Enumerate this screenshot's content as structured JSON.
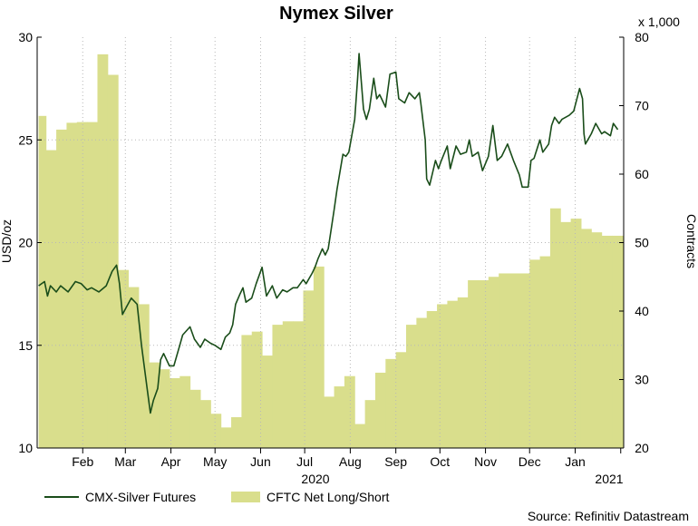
{
  "chart_data": {
    "type": "line",
    "title": "Nymex Silver",
    "ylabel": "USD/oz",
    "y2label": "Contracts",
    "y2_multiplier": "x 1,000",
    "ylim": [
      10,
      30
    ],
    "y2lim": [
      20,
      80
    ],
    "yticks": [
      "10",
      "15",
      "20",
      "25",
      "30"
    ],
    "y2ticks": [
      "20",
      "30",
      "40",
      "50",
      "60",
      "70",
      "80"
    ],
    "x_month_labels": [
      "Feb",
      "Mar",
      "Apr",
      "May",
      "Jun",
      "Jul",
      "Aug",
      "Sep",
      "Oct",
      "Nov",
      "Dec",
      "Jan"
    ],
    "x_year_labels": [
      "2020",
      "2021"
    ],
    "grid": true,
    "legend_position": "bottom",
    "series": [
      {
        "name": "CMX-Silver Futures",
        "axis": "left",
        "type": "line",
        "color": "#1a4d1a",
        "points": [
          [
            "2020-01-02",
            17.9
          ],
          [
            "2020-01-06",
            18.1
          ],
          [
            "2020-01-08",
            17.4
          ],
          [
            "2020-01-10",
            17.9
          ],
          [
            "2020-01-14",
            17.6
          ],
          [
            "2020-01-17",
            17.9
          ],
          [
            "2020-01-22",
            17.6
          ],
          [
            "2020-01-27",
            18.1
          ],
          [
            "2020-01-31",
            18.0
          ],
          [
            "2020-02-04",
            17.7
          ],
          [
            "2020-02-07",
            17.8
          ],
          [
            "2020-02-12",
            17.6
          ],
          [
            "2020-02-17",
            17.9
          ],
          [
            "2020-02-21",
            18.6
          ],
          [
            "2020-02-24",
            18.9
          ],
          [
            "2020-02-26",
            18.0
          ],
          [
            "2020-02-28",
            16.5
          ],
          [
            "2020-03-02",
            16.9
          ],
          [
            "2020-03-05",
            17.3
          ],
          [
            "2020-03-09",
            17.0
          ],
          [
            "2020-03-12",
            15.0
          ],
          [
            "2020-03-16",
            12.8
          ],
          [
            "2020-03-18",
            11.7
          ],
          [
            "2020-03-20",
            12.3
          ],
          [
            "2020-03-23",
            12.9
          ],
          [
            "2020-03-25",
            14.3
          ],
          [
            "2020-03-27",
            14.6
          ],
          [
            "2020-03-31",
            14.0
          ],
          [
            "2020-04-03",
            14.0
          ],
          [
            "2020-04-07",
            15.0
          ],
          [
            "2020-04-09",
            15.5
          ],
          [
            "2020-04-14",
            15.9
          ],
          [
            "2020-04-17",
            15.3
          ],
          [
            "2020-04-21",
            14.9
          ],
          [
            "2020-04-24",
            15.3
          ],
          [
            "2020-04-28",
            15.1
          ],
          [
            "2020-05-01",
            15.0
          ],
          [
            "2020-05-05",
            14.8
          ],
          [
            "2020-05-08",
            15.4
          ],
          [
            "2020-05-11",
            15.6
          ],
          [
            "2020-05-13",
            16.0
          ],
          [
            "2020-05-15",
            17.0
          ],
          [
            "2020-05-18",
            17.5
          ],
          [
            "2020-05-20",
            17.8
          ],
          [
            "2020-05-22",
            17.1
          ],
          [
            "2020-05-26",
            17.3
          ],
          [
            "2020-05-29",
            18.0
          ],
          [
            "2020-06-02",
            18.8
          ],
          [
            "2020-06-05",
            17.4
          ],
          [
            "2020-06-09",
            17.9
          ],
          [
            "2020-06-12",
            17.3
          ],
          [
            "2020-06-16",
            17.7
          ],
          [
            "2020-06-19",
            17.6
          ],
          [
            "2020-06-23",
            17.8
          ],
          [
            "2020-06-26",
            17.8
          ],
          [
            "2020-06-30",
            18.2
          ],
          [
            "2020-07-02",
            18.0
          ],
          [
            "2020-07-06",
            18.5
          ],
          [
            "2020-07-08",
            18.8
          ],
          [
            "2020-07-10",
            19.2
          ],
          [
            "2020-07-13",
            19.7
          ],
          [
            "2020-07-15",
            19.4
          ],
          [
            "2020-07-17",
            19.7
          ],
          [
            "2020-07-21",
            21.6
          ],
          [
            "2020-07-23",
            22.6
          ],
          [
            "2020-07-27",
            24.3
          ],
          [
            "2020-07-29",
            24.2
          ],
          [
            "2020-07-31",
            24.4
          ],
          [
            "2020-08-04",
            26.0
          ],
          [
            "2020-08-06",
            28.0
          ],
          [
            "2020-08-07",
            29.2
          ],
          [
            "2020-08-10",
            26.5
          ],
          [
            "2020-08-12",
            26.0
          ],
          [
            "2020-08-14",
            26.5
          ],
          [
            "2020-08-17",
            28.0
          ],
          [
            "2020-08-19",
            27.0
          ],
          [
            "2020-08-21",
            27.2
          ],
          [
            "2020-08-25",
            26.6
          ],
          [
            "2020-08-28",
            28.2
          ],
          [
            "2020-09-01",
            28.3
          ],
          [
            "2020-09-03",
            27.0
          ],
          [
            "2020-09-07",
            26.8
          ],
          [
            "2020-09-10",
            27.3
          ],
          [
            "2020-09-14",
            27.0
          ],
          [
            "2020-09-17",
            27.3
          ],
          [
            "2020-09-18",
            26.8
          ],
          [
            "2020-09-21",
            25.0
          ],
          [
            "2020-09-22",
            23.1
          ],
          [
            "2020-09-24",
            22.8
          ],
          [
            "2020-09-28",
            24.0
          ],
          [
            "2020-09-30",
            23.6
          ],
          [
            "2020-10-02",
            24.0
          ],
          [
            "2020-10-06",
            24.7
          ],
          [
            "2020-10-08",
            23.6
          ],
          [
            "2020-10-12",
            24.7
          ],
          [
            "2020-10-15",
            24.3
          ],
          [
            "2020-10-19",
            24.4
          ],
          [
            "2020-10-21",
            25.0
          ],
          [
            "2020-10-23",
            24.2
          ],
          [
            "2020-10-27",
            24.4
          ],
          [
            "2020-10-30",
            23.5
          ],
          [
            "2020-11-03",
            24.2
          ],
          [
            "2020-11-05",
            25.2
          ],
          [
            "2020-11-06",
            25.7
          ],
          [
            "2020-11-09",
            24.0
          ],
          [
            "2020-11-12",
            24.2
          ],
          [
            "2020-11-16",
            24.8
          ],
          [
            "2020-11-18",
            24.4
          ],
          [
            "2020-11-20",
            24.0
          ],
          [
            "2020-11-24",
            23.3
          ],
          [
            "2020-11-26",
            22.7
          ],
          [
            "2020-11-30",
            22.7
          ],
          [
            "2020-12-02",
            24.0
          ],
          [
            "2020-12-04",
            24.1
          ],
          [
            "2020-12-08",
            25.0
          ],
          [
            "2020-12-10",
            24.4
          ],
          [
            "2020-12-14",
            24.8
          ],
          [
            "2020-12-16",
            25.7
          ],
          [
            "2020-12-18",
            26.1
          ],
          [
            "2020-12-21",
            25.8
          ],
          [
            "2020-12-23",
            26.0
          ],
          [
            "2020-12-28",
            26.2
          ],
          [
            "2020-12-31",
            26.4
          ],
          [
            "2021-01-04",
            27.5
          ],
          [
            "2021-01-06",
            27.0
          ],
          [
            "2021-01-07",
            25.3
          ],
          [
            "2021-01-08",
            24.8
          ],
          [
            "2021-01-12",
            25.3
          ],
          [
            "2021-01-15",
            25.8
          ],
          [
            "2021-01-19",
            25.3
          ],
          [
            "2021-01-21",
            25.4
          ],
          [
            "2021-01-25",
            25.2
          ],
          [
            "2021-01-27",
            25.8
          ],
          [
            "2021-01-30",
            25.5
          ]
        ]
      },
      {
        "name": "CFTC Net Long/Short",
        "axis": "right",
        "type": "area",
        "color": "#d9de8c",
        "points": [
          [
            "2020-01-02",
            68.5
          ],
          [
            "2020-01-07",
            63.5
          ],
          [
            "2020-01-14",
            66.5
          ],
          [
            "2020-01-21",
            67.5
          ],
          [
            "2020-01-28",
            67.6
          ],
          [
            "2020-02-04",
            67.6
          ],
          [
            "2020-02-11",
            77.5
          ],
          [
            "2020-02-18",
            74.5
          ],
          [
            "2020-02-25",
            46.0
          ],
          [
            "2020-03-03",
            43.5
          ],
          [
            "2020-03-10",
            41.0
          ],
          [
            "2020-03-17",
            32.5
          ],
          [
            "2020-03-24",
            31.5
          ],
          [
            "2020-03-31",
            30.2
          ],
          [
            "2020-04-07",
            30.5
          ],
          [
            "2020-04-14",
            28.5
          ],
          [
            "2020-04-21",
            27.0
          ],
          [
            "2020-04-28",
            25.0
          ],
          [
            "2020-05-05",
            23.0
          ],
          [
            "2020-05-12",
            24.5
          ],
          [
            "2020-05-19",
            36.5
          ],
          [
            "2020-05-26",
            37.0
          ],
          [
            "2020-06-02",
            33.5
          ],
          [
            "2020-06-09",
            38.0
          ],
          [
            "2020-06-16",
            38.5
          ],
          [
            "2020-06-23",
            38.5
          ],
          [
            "2020-06-30",
            43.0
          ],
          [
            "2020-07-07",
            46.5
          ],
          [
            "2020-07-14",
            27.5
          ],
          [
            "2020-07-21",
            29.0
          ],
          [
            "2020-07-28",
            30.5
          ],
          [
            "2020-08-04",
            23.5
          ],
          [
            "2020-08-11",
            27.0
          ],
          [
            "2020-08-18",
            31.0
          ],
          [
            "2020-08-25",
            33.0
          ],
          [
            "2020-09-01",
            34.0
          ],
          [
            "2020-09-08",
            38.0
          ],
          [
            "2020-09-15",
            39.0
          ],
          [
            "2020-09-22",
            40.0
          ],
          [
            "2020-09-29",
            41.0
          ],
          [
            "2020-10-06",
            41.5
          ],
          [
            "2020-10-13",
            42.0
          ],
          [
            "2020-10-20",
            44.5
          ],
          [
            "2020-10-27",
            44.5
          ],
          [
            "2020-11-03",
            45.0
          ],
          [
            "2020-11-10",
            45.5
          ],
          [
            "2020-11-17",
            45.5
          ],
          [
            "2020-11-24",
            45.5
          ],
          [
            "2020-12-01",
            47.5
          ],
          [
            "2020-12-08",
            48.0
          ],
          [
            "2020-12-15",
            55.0
          ],
          [
            "2020-12-22",
            53.0
          ],
          [
            "2020-12-29",
            53.5
          ],
          [
            "2021-01-05",
            52.0
          ],
          [
            "2021-01-12",
            51.5
          ],
          [
            "2021-01-19",
            51.0
          ],
          [
            "2021-01-26",
            51.0
          ]
        ]
      }
    ]
  },
  "legend": {
    "line_label": "CMX-Silver Futures",
    "area_label": "CFTC Net Long/Short"
  },
  "source": "Source: Refinitiv Datastream",
  "colors": {
    "line": "#1a4d1a",
    "area": "#d9de8c",
    "grid": "#b8b8b8"
  }
}
